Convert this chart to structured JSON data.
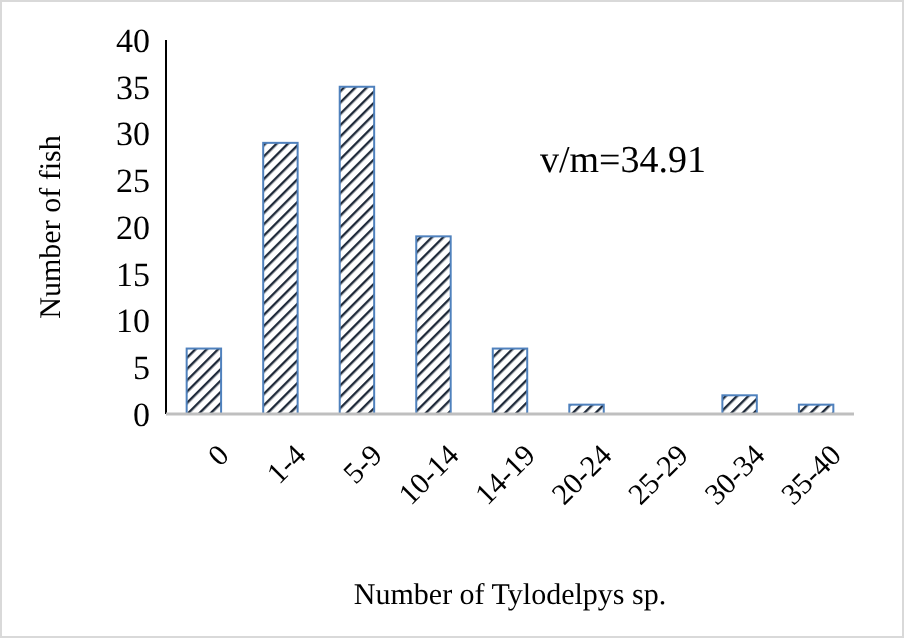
{
  "chart_data": {
    "type": "bar",
    "xlabel": "Number of Tylodelpys sp.",
    "ylabel": "Number of fish",
    "categories": [
      "0",
      "1-4",
      "5-9",
      "10-14",
      "14-19",
      "20-24",
      "25-29",
      "30-34",
      "35-40"
    ],
    "values": [
      7,
      29,
      35,
      19,
      7,
      1,
      0,
      2,
      1
    ],
    "color": "#4f81bd",
    "ylim": [
      0,
      40
    ],
    "yticks": [
      0,
      5,
      10,
      15,
      20,
      25,
      30,
      35,
      40
    ],
    "grid": false,
    "annotations": [
      "v/m=34.91"
    ]
  }
}
